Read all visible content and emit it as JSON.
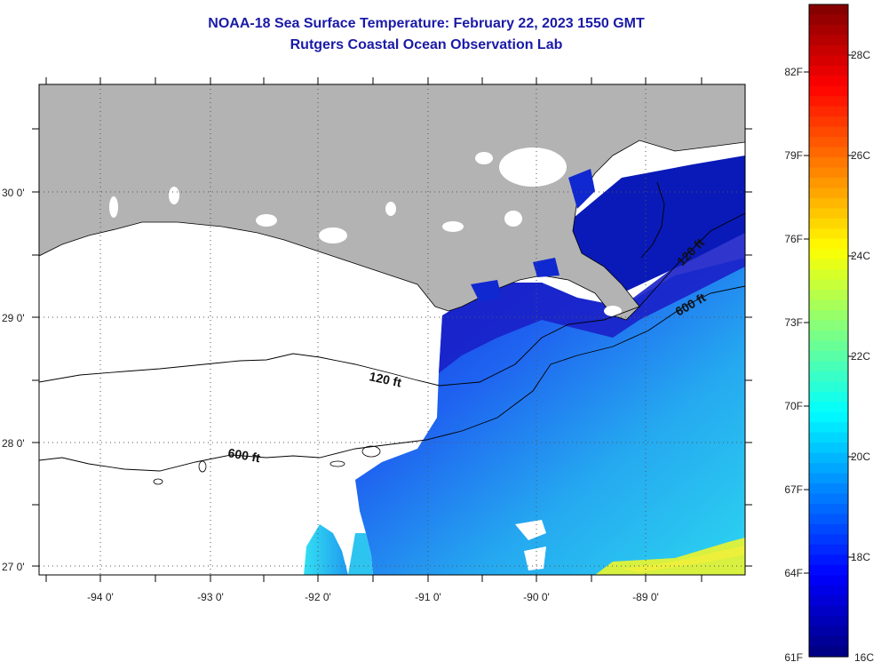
{
  "title": "NOAA-18 Sea Surface Temperature:  February 22, 2023 1550 GMT",
  "subtitle": "Rutgers Coastal Ocean Observation Lab",
  "map": {
    "lat_labels": [
      "30 0'",
      "29 0'",
      "28 0'",
      "27 0'"
    ],
    "lon_labels": [
      "-94 0'",
      "-93 0'",
      "-92 0'",
      "-91 0'",
      "-90 0'",
      "-89 0'"
    ],
    "contours": [
      {
        "name": "120 ft",
        "label": "120 ft"
      },
      {
        "name": "600 ft",
        "label": "600 ft"
      },
      {
        "name": "120 ft east",
        "label": "120 ft"
      },
      {
        "name": "600 ft east",
        "label": "600 ft"
      }
    ],
    "colors": {
      "land": "#b3b3b3",
      "ocean_no_data": "#ffffff"
    }
  },
  "colorbar": {
    "fahrenheit": [
      "82F",
      "79F",
      "76F",
      "73F",
      "70F",
      "67F",
      "64F",
      "61F"
    ],
    "celsius": [
      "28C",
      "26C",
      "24C",
      "22C",
      "20C",
      "18C",
      "16C"
    ],
    "min_c": 16,
    "max_c": 29
  }
}
